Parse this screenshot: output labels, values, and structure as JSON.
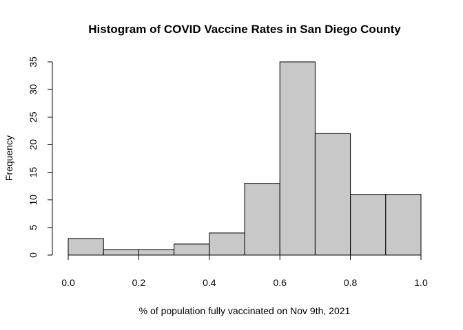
{
  "chart_data": {
    "type": "bar",
    "title": "Histogram of COVID Vaccine Rates in San Diego County",
    "xlabel": "% of population fully vaccinated on Nov 9th, 2021",
    "ylabel": "Frequency",
    "bins": [
      {
        "x0": 0.0,
        "x1": 0.1,
        "count": 3
      },
      {
        "x0": 0.1,
        "x1": 0.2,
        "count": 1
      },
      {
        "x0": 0.2,
        "x1": 0.3,
        "count": 1
      },
      {
        "x0": 0.3,
        "x1": 0.4,
        "count": 2
      },
      {
        "x0": 0.4,
        "x1": 0.5,
        "count": 4
      },
      {
        "x0": 0.5,
        "x1": 0.6,
        "count": 13
      },
      {
        "x0": 0.6,
        "x1": 0.7,
        "count": 35
      },
      {
        "x0": 0.7,
        "x1": 0.8,
        "count": 22
      },
      {
        "x0": 0.8,
        "x1": 0.9,
        "count": 11
      },
      {
        "x0": 0.9,
        "x1": 1.0,
        "count": 11
      }
    ],
    "xlim": [
      0.0,
      1.0
    ],
    "ylim": [
      0,
      35
    ],
    "xticks": [
      "0.0",
      "0.2",
      "0.4",
      "0.6",
      "0.8",
      "1.0"
    ],
    "yticks": [
      "0",
      "5",
      "10",
      "15",
      "20",
      "25",
      "30",
      "35"
    ],
    "bar_color": "#c8c8c8",
    "grid": false,
    "legend": "none"
  }
}
